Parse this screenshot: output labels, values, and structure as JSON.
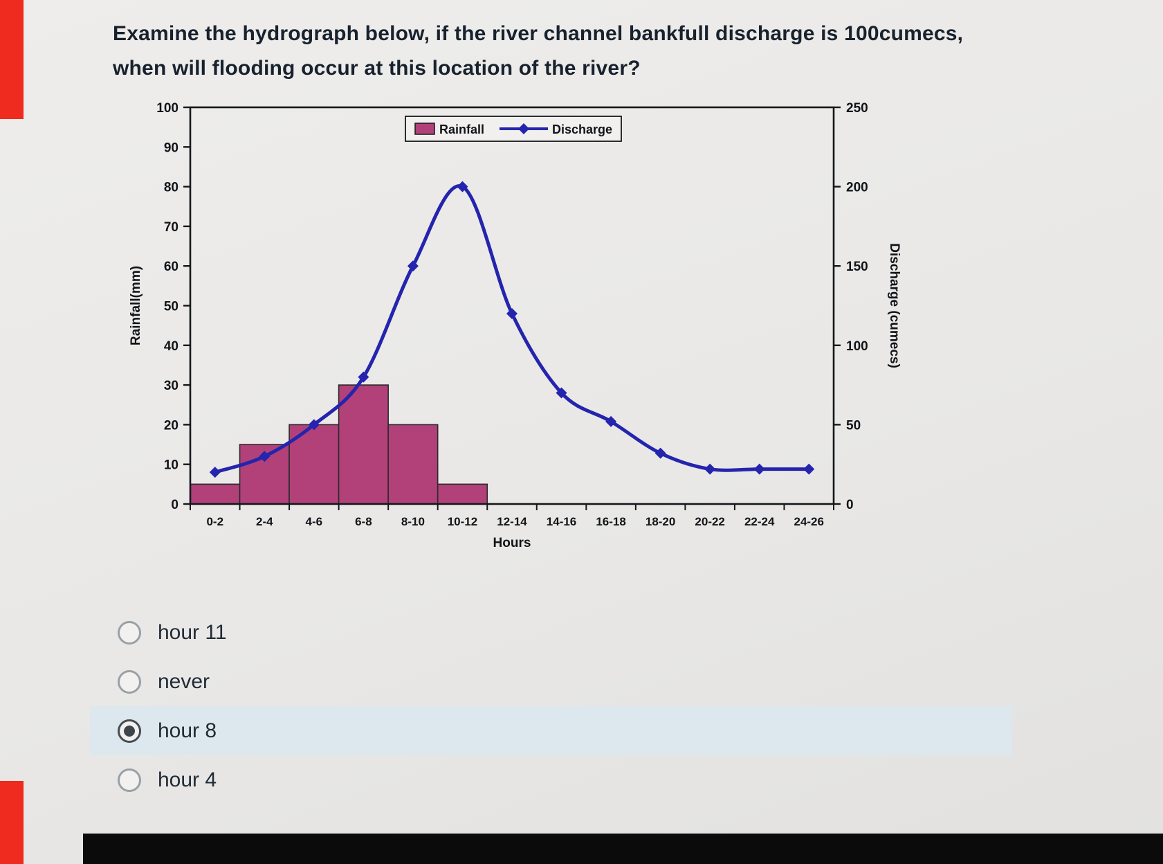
{
  "question": {
    "line1": "Examine the hydrograph below, if the river channel bankfull discharge is 100cumecs,",
    "line2": "when will flooding occur at this location of the river?"
  },
  "chart_data": {
    "type": "combo",
    "title": "",
    "categories": [
      "0-2",
      "2-4",
      "4-6",
      "6-8",
      "8-10",
      "10-12",
      "12-14",
      "14-16",
      "16-18",
      "18-20",
      "20-22",
      "22-24",
      "24-26"
    ],
    "series": [
      {
        "name": "Rainfall",
        "type": "bar",
        "axis": "left",
        "unit": "mm",
        "color": "#b2417a",
        "values": [
          5,
          15,
          20,
          30,
          20,
          5,
          0,
          0,
          0,
          0,
          0,
          0,
          0
        ]
      },
      {
        "name": "Discharge",
        "type": "line",
        "axis": "right",
        "unit": "cumecs",
        "color": "#2424ae",
        "values": [
          20,
          30,
          50,
          80,
          150,
          200,
          120,
          70,
          52,
          32,
          22,
          22,
          22
        ]
      }
    ],
    "left_axis": {
      "label": "Rainfall(mm)",
      "min": 0,
      "max": 100,
      "step": 10
    },
    "right_axis": {
      "label": "Discharge (cumecs)",
      "min": 0,
      "max": 250,
      "step": 50
    },
    "xlabel": "Hours",
    "legend": [
      "Rainfall",
      "Discharge"
    ],
    "grid": false,
    "legend_position": "top-center"
  },
  "options": [
    {
      "label": "hour 11",
      "selected": false
    },
    {
      "label": "never",
      "selected": false
    },
    {
      "label": "hour 8",
      "selected": true
    },
    {
      "label": "hour 4",
      "selected": false
    }
  ],
  "colors": {
    "rainfall_bar": "#b2417a",
    "discharge_line": "#2424ae",
    "selected_option_bg": "#dce8ee",
    "edge_strip_red": "#ee2b1e",
    "bottom_bar_black": "#0b0b0b"
  }
}
